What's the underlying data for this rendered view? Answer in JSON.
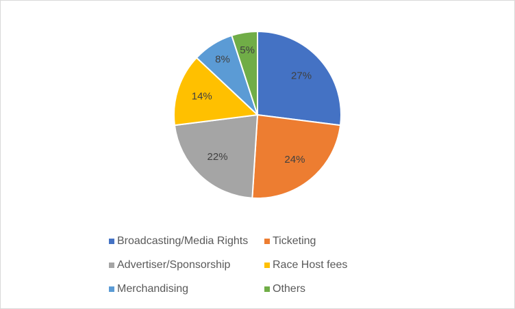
{
  "chart_data": {
    "type": "pie",
    "categories": [
      "Broadcasting/Media Rights",
      "Ticketing",
      "Advertiser/Sponsorship",
      "Race Host fees",
      "Merchandising",
      "Others"
    ],
    "values": [
      27,
      24,
      22,
      14,
      8,
      5
    ],
    "value_labels": [
      "27%",
      "24%",
      "22%",
      "14%",
      "8%",
      "5%"
    ],
    "colors": [
      "#4472c4",
      "#ed7d31",
      "#a5a5a5",
      "#ffc000",
      "#5b9bd5",
      "#70ad47"
    ],
    "legend": "bottom"
  }
}
